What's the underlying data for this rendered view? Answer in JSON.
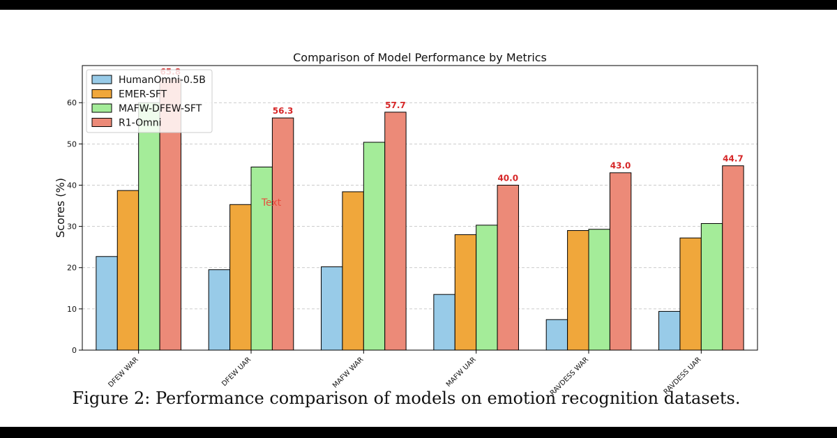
{
  "figure": {
    "caption": "Figure 2: Performance comparison of models on emotion recognition datasets."
  },
  "colors": {
    "band": "#000000",
    "grid": "#bbbbbb",
    "value_label": "#d62728",
    "stray_text": "#e74c3c"
  },
  "chart_data": {
    "type": "bar",
    "title": "Comparison of Model Performance by Metrics",
    "xlabel": "",
    "ylabel": "Scores (%)",
    "ylim": [
      0,
      69
    ],
    "yticks": [
      0,
      10,
      20,
      30,
      40,
      50,
      60
    ],
    "grid": "y-dashed",
    "legend_placement": "top-left",
    "categories": [
      "DFEW WAR",
      "DFEW UAR",
      "MAFW WAR",
      "MAFW UAR",
      "RAVDESS WAR",
      "RAVDESS UAR"
    ],
    "series": [
      {
        "name": "HumanOmni-0.5B",
        "color": "#98cbe8",
        "values": [
          22.7,
          19.5,
          20.2,
          13.5,
          7.4,
          9.4
        ]
      },
      {
        "name": "EMER-SFT",
        "color": "#f0a73b",
        "values": [
          38.7,
          35.3,
          38.4,
          28.0,
          29.0,
          27.2
        ]
      },
      {
        "name": "MAFW-DFEW-SFT",
        "color": "#a4ec99",
        "values": [
          60.0,
          44.4,
          50.4,
          30.3,
          29.3,
          30.7
        ]
      },
      {
        "name": "R1-Omni",
        "color": "#ec8a78",
        "values": [
          65.8,
          56.3,
          57.7,
          40.0,
          43.0,
          44.7
        ]
      }
    ],
    "value_labels": [
      "65.8",
      "56.3",
      "57.7",
      "40.0",
      "43.0",
      "44.7"
    ],
    "annotations": [
      {
        "text": "Text",
        "category": "DFEW UAR",
        "y": 35
      }
    ]
  }
}
